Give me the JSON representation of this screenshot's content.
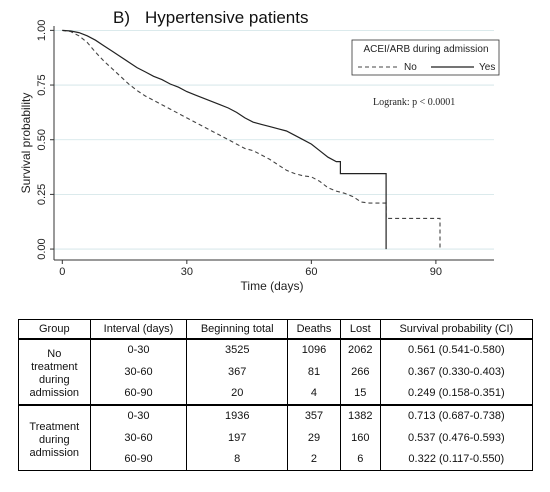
{
  "panel_label": "B)",
  "chart_data": {
    "type": "line",
    "title": "Hypertensive patients",
    "xlabel": "Time (days)",
    "ylabel": "Survival probability",
    "xlim": [
      -2,
      104
    ],
    "ylim": [
      -0.05,
      1.02
    ],
    "xticks": [
      0,
      30,
      60,
      90
    ],
    "yticks": [
      0.0,
      0.25,
      0.5,
      0.75,
      1.0
    ],
    "ytick_labels": [
      "0.00",
      "0.25",
      "0.50",
      "0.75",
      "1.00"
    ],
    "grid": "horizontal",
    "legend": {
      "title": "ACEI/ARB during admission",
      "placement": "top-right",
      "entries": [
        "No",
        "Yes"
      ]
    },
    "annotation": "Logrank: p < 0.0001",
    "series": [
      {
        "name": "No",
        "style": "dashed",
        "points": [
          [
            0,
            1.0
          ],
          [
            2,
            0.995
          ],
          [
            4,
            0.975
          ],
          [
            6,
            0.945
          ],
          [
            8,
            0.9
          ],
          [
            10,
            0.86
          ],
          [
            12,
            0.825
          ],
          [
            14,
            0.79
          ],
          [
            16,
            0.755
          ],
          [
            18,
            0.725
          ],
          [
            20,
            0.7
          ],
          [
            22,
            0.68
          ],
          [
            24,
            0.66
          ],
          [
            26,
            0.64
          ],
          [
            28,
            0.62
          ],
          [
            30,
            0.6
          ],
          [
            32,
            0.58
          ],
          [
            34,
            0.56
          ],
          [
            36,
            0.54
          ],
          [
            38,
            0.52
          ],
          [
            40,
            0.5
          ],
          [
            42,
            0.48
          ],
          [
            44,
            0.46
          ],
          [
            46,
            0.45
          ],
          [
            48,
            0.43
          ],
          [
            50,
            0.41
          ],
          [
            52,
            0.385
          ],
          [
            54,
            0.36
          ],
          [
            56,
            0.345
          ],
          [
            58,
            0.335
          ],
          [
            60,
            0.33
          ],
          [
            62,
            0.31
          ],
          [
            64,
            0.28
          ],
          [
            66,
            0.265
          ],
          [
            68,
            0.255
          ],
          [
            70,
            0.24
          ],
          [
            72,
            0.215
          ],
          [
            74,
            0.21
          ],
          [
            76,
            0.21
          ],
          [
            78,
            0.21
          ],
          [
            78,
            0.14
          ],
          [
            91,
            0.14
          ],
          [
            91,
            0.0
          ]
        ]
      },
      {
        "name": "Yes",
        "style": "solid",
        "points": [
          [
            0,
            1.0
          ],
          [
            2,
            0.997
          ],
          [
            4,
            0.99
          ],
          [
            6,
            0.975
          ],
          [
            8,
            0.955
          ],
          [
            10,
            0.93
          ],
          [
            12,
            0.905
          ],
          [
            14,
            0.88
          ],
          [
            16,
            0.855
          ],
          [
            18,
            0.83
          ],
          [
            20,
            0.81
          ],
          [
            22,
            0.79
          ],
          [
            24,
            0.775
          ],
          [
            26,
            0.755
          ],
          [
            28,
            0.74
          ],
          [
            30,
            0.72
          ],
          [
            32,
            0.705
          ],
          [
            34,
            0.69
          ],
          [
            36,
            0.675
          ],
          [
            38,
            0.66
          ],
          [
            40,
            0.645
          ],
          [
            42,
            0.625
          ],
          [
            44,
            0.6
          ],
          [
            46,
            0.58
          ],
          [
            48,
            0.57
          ],
          [
            50,
            0.56
          ],
          [
            52,
            0.55
          ],
          [
            54,
            0.54
          ],
          [
            56,
            0.52
          ],
          [
            58,
            0.5
          ],
          [
            60,
            0.48
          ],
          [
            62,
            0.45
          ],
          [
            64,
            0.42
          ],
          [
            66,
            0.4
          ],
          [
            67,
            0.4
          ],
          [
            67,
            0.345
          ],
          [
            78,
            0.345
          ],
          [
            78,
            0.0
          ]
        ]
      }
    ]
  },
  "table": {
    "headers": [
      "Group",
      "Interval (days)",
      "Beginning total",
      "Deaths",
      "Lost",
      "Survival probability (CI)"
    ],
    "groups": [
      {
        "name_lines": [
          "No",
          "treatment",
          "during",
          "admission"
        ],
        "rows": [
          [
            "0-30",
            "3525",
            "1096",
            "2062",
            "0.561 (0.541-0.580)"
          ],
          [
            "30-60",
            "367",
            "81",
            "266",
            "0.367 (0.330-0.403)"
          ],
          [
            "60-90",
            "20",
            "4",
            "15",
            "0.249 (0.158-0.351)"
          ]
        ]
      },
      {
        "name_lines": [
          "Treatment",
          "during",
          "admission"
        ],
        "rows": [
          [
            "0-30",
            "1936",
            "357",
            "1382",
            "0.713 (0.687-0.738)"
          ],
          [
            "30-60",
            "197",
            "29",
            "160",
            "0.537 (0.476-0.593)"
          ],
          [
            "60-90",
            "8",
            "2",
            "6",
            "0.322 (0.117-0.550)"
          ]
        ]
      }
    ]
  }
}
